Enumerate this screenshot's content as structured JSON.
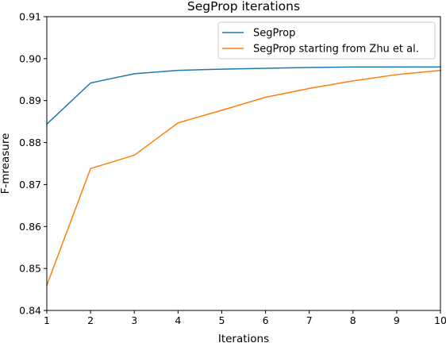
{
  "chart_data": {
    "type": "line",
    "title": "SegProp iterations",
    "xlabel": "Iterations",
    "ylabel": "F-mreasure",
    "xlim": [
      1,
      10
    ],
    "ylim": [
      0.84,
      0.91
    ],
    "x_ticks": [
      "1",
      "2",
      "3",
      "4",
      "5",
      "6",
      "7",
      "8",
      "9",
      "10"
    ],
    "y_ticks": [
      "0.84",
      "0.85",
      "0.86",
      "0.87",
      "0.88",
      "0.89",
      "0.90",
      "0.91"
    ],
    "grid": false,
    "legend_position": "top-right",
    "x": [
      1,
      2,
      3,
      4,
      5,
      6,
      7,
      8,
      9,
      10
    ],
    "series": [
      {
        "name": "SegProp",
        "color": "#1f77b4",
        "values": [
          0.8844,
          0.8942,
          0.8964,
          0.8972,
          0.8975,
          0.8977,
          0.8979,
          0.898,
          0.898,
          0.898
        ]
      },
      {
        "name": "SegProp starting from Zhu et al.",
        "color": "#ff7f0e",
        "values": [
          0.846,
          0.8738,
          0.877,
          0.8847,
          0.8877,
          0.8908,
          0.8929,
          0.8947,
          0.8962,
          0.8972
        ]
      }
    ]
  }
}
